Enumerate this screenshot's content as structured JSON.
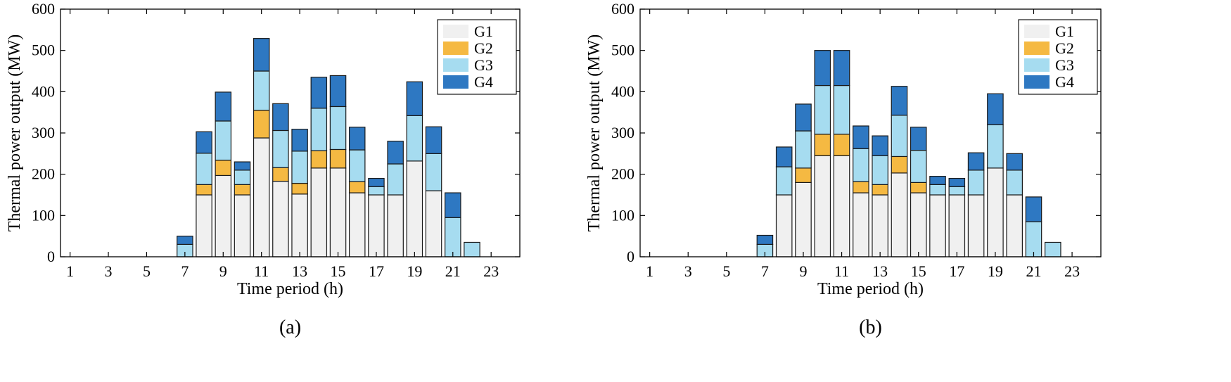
{
  "chart_data": [
    {
      "type": "bar",
      "stacked": true,
      "caption": "(a)",
      "xlabel": "Time period (h)",
      "ylabel": "Thermal power output (MW)",
      "ylim": [
        0,
        600
      ],
      "yticks": [
        0,
        100,
        200,
        300,
        400,
        500,
        600
      ],
      "xticks": [
        1,
        3,
        5,
        7,
        9,
        11,
        13,
        15,
        17,
        19,
        21,
        23
      ],
      "xlim": [
        0,
        24
      ],
      "legend_position": "top-right",
      "categories": [
        1,
        2,
        3,
        4,
        5,
        6,
        7,
        8,
        9,
        10,
        11,
        12,
        13,
        14,
        15,
        16,
        17,
        18,
        19,
        20,
        21,
        22,
        23,
        24
      ],
      "series": [
        {
          "name": "G1",
          "color": "#f0f0f0",
          "values": [
            0,
            0,
            0,
            0,
            0,
            0,
            0,
            150,
            197,
            150,
            288,
            183,
            152,
            215,
            215,
            155,
            150,
            150,
            232,
            160,
            0,
            0,
            0,
            0
          ]
        },
        {
          "name": "G2",
          "color": "#f5b942",
          "values": [
            0,
            0,
            0,
            0,
            0,
            0,
            0,
            25,
            37,
            25,
            67,
            33,
            26,
            42,
            45,
            27,
            0,
            0,
            0,
            0,
            0,
            0,
            0,
            0
          ]
        },
        {
          "name": "G3",
          "color": "#a6dcf0",
          "values": [
            0,
            0,
            0,
            0,
            0,
            0,
            30,
            76,
            95,
            35,
            95,
            90,
            78,
            103,
            104,
            77,
            20,
            75,
            110,
            90,
            95,
            35,
            0,
            0
          ]
        },
        {
          "name": "G4",
          "color": "#2e78c2",
          "values": [
            0,
            0,
            0,
            0,
            0,
            0,
            20,
            52,
            70,
            20,
            79,
            65,
            53,
            75,
            75,
            55,
            20,
            55,
            82,
            65,
            60,
            0,
            0,
            0
          ]
        }
      ]
    },
    {
      "type": "bar",
      "stacked": true,
      "caption": "(b)",
      "xlabel": "Time period (h)",
      "ylabel": "Thermal power output (MW)",
      "ylim": [
        0,
        600
      ],
      "yticks": [
        0,
        100,
        200,
        300,
        400,
        500,
        600
      ],
      "xticks": [
        1,
        3,
        5,
        7,
        9,
        11,
        13,
        15,
        17,
        19,
        21,
        23
      ],
      "xlim": [
        0,
        24
      ],
      "legend_position": "top-right",
      "categories": [
        1,
        2,
        3,
        4,
        5,
        6,
        7,
        8,
        9,
        10,
        11,
        12,
        13,
        14,
        15,
        16,
        17,
        18,
        19,
        20,
        21,
        22,
        23,
        24
      ],
      "series": [
        {
          "name": "G1",
          "color": "#f0f0f0",
          "values": [
            0,
            0,
            0,
            0,
            0,
            0,
            0,
            150,
            180,
            245,
            245,
            155,
            150,
            203,
            155,
            150,
            150,
            150,
            215,
            150,
            0,
            0,
            0,
            0
          ]
        },
        {
          "name": "G2",
          "color": "#f5b942",
          "values": [
            0,
            0,
            0,
            0,
            0,
            0,
            0,
            0,
            35,
            52,
            52,
            27,
            25,
            40,
            25,
            0,
            0,
            0,
            0,
            0,
            0,
            0,
            0,
            0
          ]
        },
        {
          "name": "G3",
          "color": "#a6dcf0",
          "values": [
            0,
            0,
            0,
            0,
            0,
            0,
            30,
            68,
            90,
            118,
            118,
            80,
            70,
            100,
            78,
            25,
            20,
            60,
            105,
            60,
            85,
            35,
            0,
            0
          ]
        },
        {
          "name": "G4",
          "color": "#2e78c2",
          "values": [
            0,
            0,
            0,
            0,
            0,
            0,
            22,
            48,
            65,
            85,
            85,
            55,
            48,
            70,
            56,
            20,
            20,
            42,
            75,
            40,
            60,
            0,
            0,
            0
          ]
        }
      ]
    }
  ]
}
